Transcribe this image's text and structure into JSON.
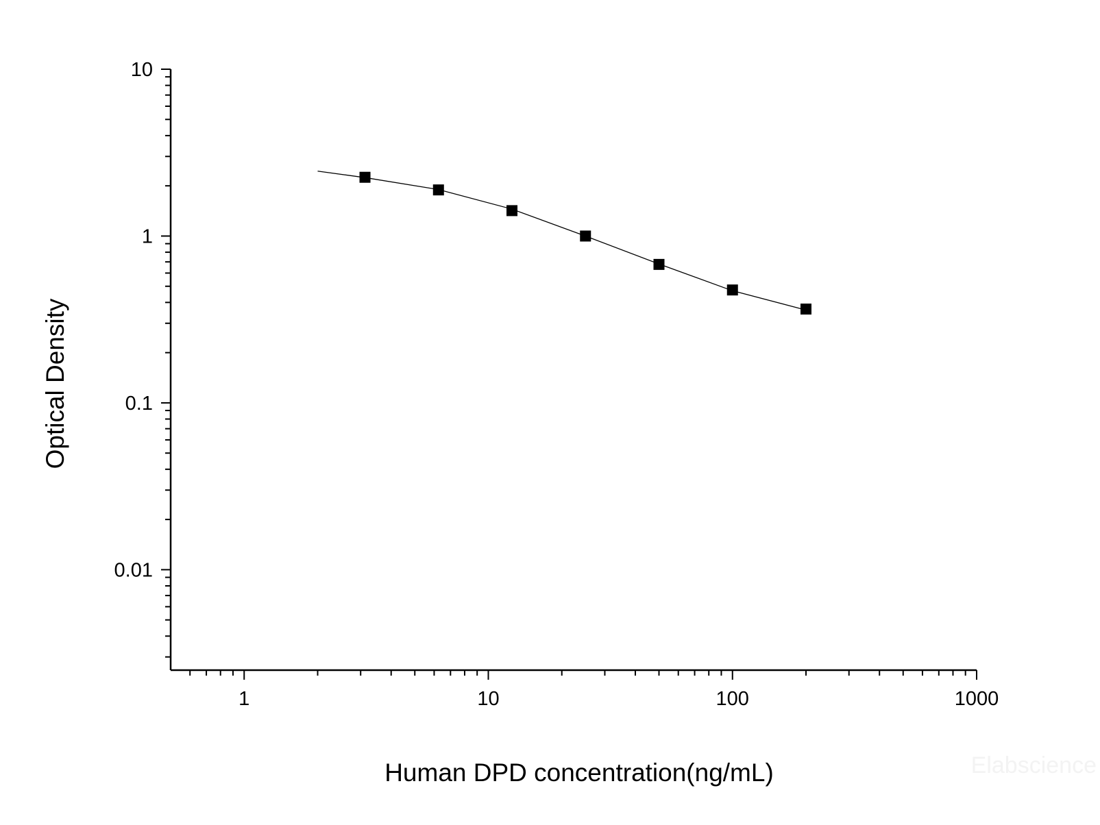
{
  "chart_data": {
    "type": "scatter",
    "x_label": "Human DPD concentration(ng/mL)",
    "y_label": "Optical Density",
    "watermark": "Elabscience",
    "x_log": true,
    "y_log": true,
    "xlim": [
      0.5,
      1000
    ],
    "ylim": [
      0.0025,
      10
    ],
    "xticks": [
      1,
      10,
      100,
      1000
    ],
    "yticks": [
      0.01,
      0.1,
      1,
      10
    ],
    "xminor_ticks": [
      0.6,
      0.7,
      0.8,
      0.9,
      2,
      3,
      4,
      5,
      6,
      7,
      8,
      9,
      20,
      30,
      40,
      50,
      60,
      70,
      80,
      90,
      200,
      300,
      400,
      500,
      600,
      700,
      800,
      900
    ],
    "yminor_ticks": [
      0.003,
      0.004,
      0.005,
      0.006,
      0.007,
      0.008,
      0.009,
      0.02,
      0.03,
      0.04,
      0.05,
      0.06,
      0.07,
      0.08,
      0.09,
      0.2,
      0.3,
      0.4,
      0.5,
      0.6,
      0.7,
      0.8,
      0.9,
      2,
      3,
      4,
      5,
      6,
      7,
      8,
      9
    ],
    "series": [
      {
        "color": "#000000",
        "marker": "square",
        "x": [
          3.125,
          6.25,
          12.5,
          25,
          50,
          100,
          200
        ],
        "values": [
          2.25,
          1.89,
          1.42,
          1.0,
          0.676,
          0.475,
          0.365
        ]
      },
      {
        "color": "#000000",
        "marker": "line",
        "x": [
          2,
          3.125,
          6.25,
          12.5,
          25,
          50,
          100,
          200
        ],
        "values": [
          2.45,
          2.24,
          1.9,
          1.45,
          1.0,
          0.68,
          0.47,
          0.36
        ]
      }
    ]
  }
}
